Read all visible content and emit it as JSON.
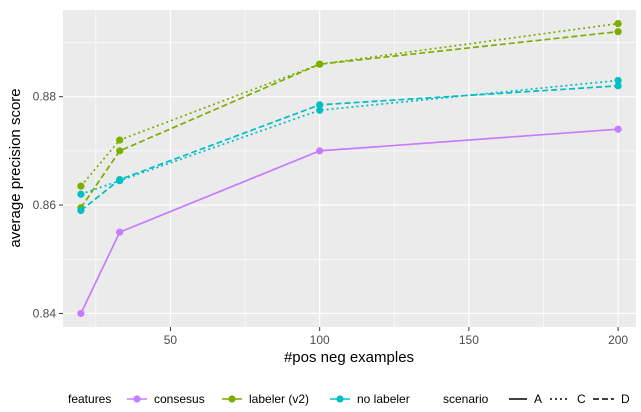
{
  "chart_data": {
    "type": "line",
    "xlabel": "#pos neg examples",
    "ylabel": "average precision score",
    "xlim": [
      14,
      206
    ],
    "ylim": [
      0.8375,
      0.896
    ],
    "x_ticks": [
      50,
      100,
      150,
      200
    ],
    "y_ticks": [
      0.84,
      0.86,
      0.88
    ],
    "x_tick_labels": [
      "50",
      "100",
      "150",
      "200"
    ],
    "y_tick_labels": [
      "0.84",
      "0.86",
      "0.88"
    ],
    "grid": true,
    "legend_position": "bottom",
    "legend": {
      "features_title": "features",
      "scenario_title": "scenario",
      "features": [
        {
          "label": "consesus",
          "color": "#C77CFF"
        },
        {
          "label": "labeler (v2)",
          "color": "#7CAE00"
        },
        {
          "label": "no labeler",
          "color": "#00BFC4"
        }
      ],
      "scenarios": [
        {
          "label": "A",
          "dash": "solid"
        },
        {
          "label": "C",
          "dash": "dotted"
        },
        {
          "label": "D",
          "dash": "dashed"
        }
      ]
    },
    "series": [
      {
        "feature": "consesus",
        "scenario": "A",
        "color": "#C77CFF",
        "dash": "solid",
        "x": [
          20,
          33,
          100,
          200
        ],
        "y": [
          0.84,
          0.855,
          0.87,
          0.874
        ]
      },
      {
        "feature": "labeler (v2)",
        "scenario": "C",
        "color": "#7CAE00",
        "dash": "dotted",
        "x": [
          20,
          33,
          100,
          200
        ],
        "y": [
          0.8635,
          0.872,
          0.886,
          0.8935
        ]
      },
      {
        "feature": "labeler (v2)",
        "scenario": "D",
        "color": "#7CAE00",
        "dash": "dashed",
        "x": [
          20,
          33,
          100,
          200
        ],
        "y": [
          0.8595,
          0.87,
          0.886,
          0.892
        ]
      },
      {
        "feature": "no labeler",
        "scenario": "C",
        "color": "#00BFC4",
        "dash": "dotted",
        "x": [
          20,
          33,
          100,
          200
        ],
        "y": [
          0.862,
          0.8645,
          0.8775,
          0.883
        ]
      },
      {
        "feature": "no labeler",
        "scenario": "D",
        "color": "#00BFC4",
        "dash": "dashed",
        "x": [
          20,
          33,
          100,
          200
        ],
        "y": [
          0.859,
          0.8647,
          0.8785,
          0.882
        ]
      }
    ]
  },
  "colors": {
    "panel_background": "#EBEBEB",
    "grid_major": "#FFFFFF",
    "tick_text": "#4D4D4D"
  }
}
